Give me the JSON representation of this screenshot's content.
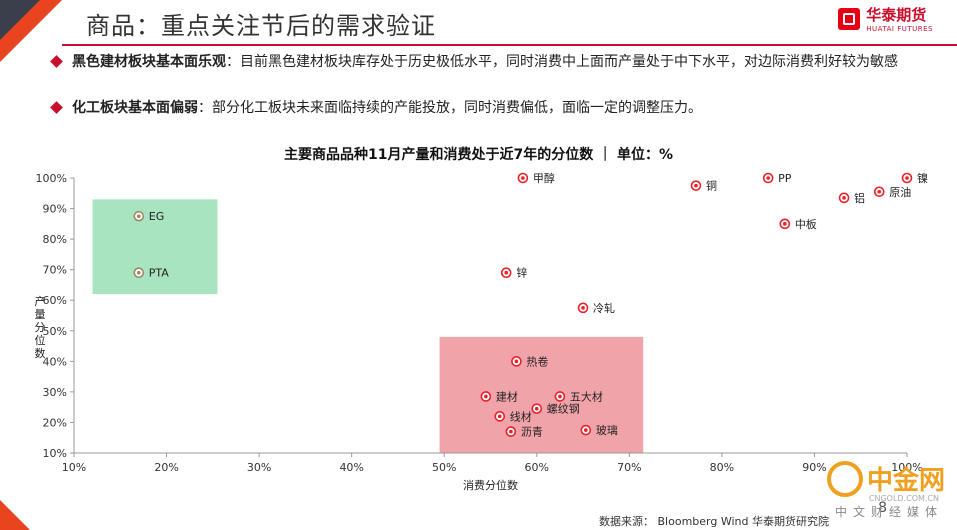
{
  "header": {
    "title": "商品：重点关注节后的需求验证",
    "logo_cn": "华泰期货",
    "logo_en": "HUATAI FUTURES"
  },
  "bullets": [
    {
      "bold": "黑色建材板块基本面乐观",
      "text": "：目前黑色建材板块库存处于历史极低水平，同时消费中上面而产量处于中下水平，对边际消费利好较为敏感"
    },
    {
      "bold": "化工板块基本面偏弱",
      "text": "：部分化工板块未来面临持续的产能投放，同时消费偏低，面临一定的调整压力。"
    }
  ],
  "chart_title": "主要商品品种11月产量和消费处于近7年的分位数 ｜ 单位：%",
  "footer": {
    "source": "数据来源：   Bloomberg Wind   华泰期货研究院",
    "page": "8"
  },
  "watermark": {
    "brand": "中金网",
    "sub": "中文财经媒体",
    "url": "CNGOLD.COM.CN"
  },
  "colors": {
    "accent": "#c8102e",
    "orange": "#e8441f",
    "green_box": "#a8e4c0",
    "red_box": "#f1a3aa",
    "marker_red": "#e8202a",
    "marker_gray": "#9e8a6a"
  },
  "chart_data": {
    "type": "scatter",
    "title": "主要商品品种11月产量和消费处于近7年的分位数 ｜ 单位：%",
    "xlabel": "消费分位数",
    "ylabel": "产量分位数",
    "xlim": [
      10,
      100
    ],
    "ylim": [
      10,
      100
    ],
    "xticks": [
      "10%",
      "20%",
      "30%",
      "40%",
      "50%",
      "60%",
      "70%",
      "80%",
      "90%",
      "100%"
    ],
    "yticks": [
      "10%",
      "20%",
      "30%",
      "40%",
      "50%",
      "60%",
      "70%",
      "80%",
      "90%",
      "100%"
    ],
    "grid": false,
    "regions": [
      {
        "name": "chemical",
        "x": [
          12,
          25.5
        ],
        "y": [
          62,
          93
        ],
        "color": "#a8e4c0"
      },
      {
        "name": "ferrous",
        "x": [
          49.5,
          71.5
        ],
        "y": [
          10,
          48
        ],
        "color": "#f1a3aa"
      }
    ],
    "points": [
      {
        "label": "甲醇",
        "x": 58.5,
        "y": 100,
        "group": "red"
      },
      {
        "label": "铜",
        "x": 77.2,
        "y": 97.5,
        "group": "red"
      },
      {
        "label": "PP",
        "x": 85,
        "y": 100,
        "group": "red"
      },
      {
        "label": "镍",
        "x": 100,
        "y": 100,
        "group": "red"
      },
      {
        "label": "铝",
        "x": 93.2,
        "y": 93.5,
        "group": "red"
      },
      {
        "label": "原油",
        "x": 97,
        "y": 95.5,
        "group": "red"
      },
      {
        "label": "中板",
        "x": 86.8,
        "y": 85,
        "group": "red"
      },
      {
        "label": "EG",
        "x": 17,
        "y": 87.5,
        "group": "gray"
      },
      {
        "label": "PTA",
        "x": 17,
        "y": 69,
        "group": "gray"
      },
      {
        "label": "锌",
        "x": 56.7,
        "y": 69,
        "group": "red"
      },
      {
        "label": "冷轧",
        "x": 65,
        "y": 57.5,
        "group": "red"
      },
      {
        "label": "热卷",
        "x": 57.8,
        "y": 40,
        "group": "red"
      },
      {
        "label": "建材",
        "x": 54.5,
        "y": 28.5,
        "group": "red"
      },
      {
        "label": "五大材",
        "x": 62.5,
        "y": 28.5,
        "group": "red"
      },
      {
        "label": "线材",
        "x": 56,
        "y": 22,
        "group": "red"
      },
      {
        "label": "螺纹钢",
        "x": 60,
        "y": 24.5,
        "group": "red"
      },
      {
        "label": "沥青",
        "x": 57.2,
        "y": 17,
        "group": "red"
      },
      {
        "label": "玻璃",
        "x": 65.3,
        "y": 17.5,
        "group": "red"
      }
    ]
  }
}
